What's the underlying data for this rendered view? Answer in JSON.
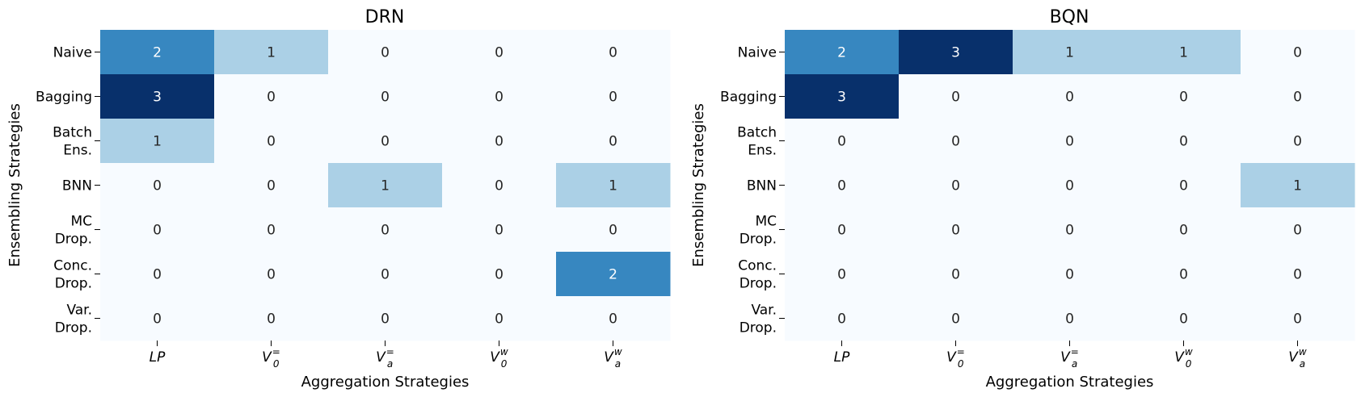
{
  "chart_data": [
    {
      "type": "heatmap",
      "title": "DRN",
      "xlabel": "Aggregation Strategies",
      "ylabel": "Ensembling Strategies",
      "x_categories": [
        {
          "base": "V",
          "sub": "",
          "sup": "",
          "text": "LP"
        },
        {
          "base": "V",
          "sub": "0",
          "sup": "="
        },
        {
          "base": "V",
          "sub": "a",
          "sup": "="
        },
        {
          "base": "V",
          "sub": "0",
          "sup": "w"
        },
        {
          "base": "V",
          "sub": "a",
          "sup": "w"
        }
      ],
      "y_categories": [
        [
          "Naive"
        ],
        [
          "Bagging"
        ],
        [
          "Batch",
          "Ens."
        ],
        [
          "BNN"
        ],
        [
          "MC",
          "Drop."
        ],
        [
          "Conc.",
          "Drop."
        ],
        [
          "Var.",
          "Drop."
        ]
      ],
      "values": [
        [
          2,
          1,
          0,
          0,
          0
        ],
        [
          3,
          0,
          0,
          0,
          0
        ],
        [
          1,
          0,
          0,
          0,
          0
        ],
        [
          0,
          0,
          1,
          0,
          1
        ],
        [
          0,
          0,
          0,
          0,
          0
        ],
        [
          0,
          0,
          0,
          0,
          2
        ],
        [
          0,
          0,
          0,
          0,
          0
        ]
      ],
      "colormap": "Blues",
      "vmin": 0,
      "vmax": 3
    },
    {
      "type": "heatmap",
      "title": "BQN",
      "xlabel": "Aggregation Strategies",
      "ylabel": "Ensembling Strategies",
      "x_categories": [
        {
          "base": "V",
          "sub": "",
          "sup": "",
          "text": "LP"
        },
        {
          "base": "V",
          "sub": "0",
          "sup": "="
        },
        {
          "base": "V",
          "sub": "a",
          "sup": "="
        },
        {
          "base": "V",
          "sub": "0",
          "sup": "w"
        },
        {
          "base": "V",
          "sub": "a",
          "sup": "w"
        }
      ],
      "y_categories": [
        [
          "Naive"
        ],
        [
          "Bagging"
        ],
        [
          "Batch",
          "Ens."
        ],
        [
          "BNN"
        ],
        [
          "MC",
          "Drop."
        ],
        [
          "Conc.",
          "Drop."
        ],
        [
          "Var.",
          "Drop."
        ]
      ],
      "values": [
        [
          2,
          3,
          1,
          1,
          0
        ],
        [
          3,
          0,
          0,
          0,
          0
        ],
        [
          0,
          0,
          0,
          0,
          0
        ],
        [
          0,
          0,
          0,
          0,
          1
        ],
        [
          0,
          0,
          0,
          0,
          0
        ],
        [
          0,
          0,
          0,
          0,
          0
        ],
        [
          0,
          0,
          0,
          0,
          0
        ]
      ],
      "colormap": "Blues",
      "vmin": 0,
      "vmax": 3
    }
  ]
}
